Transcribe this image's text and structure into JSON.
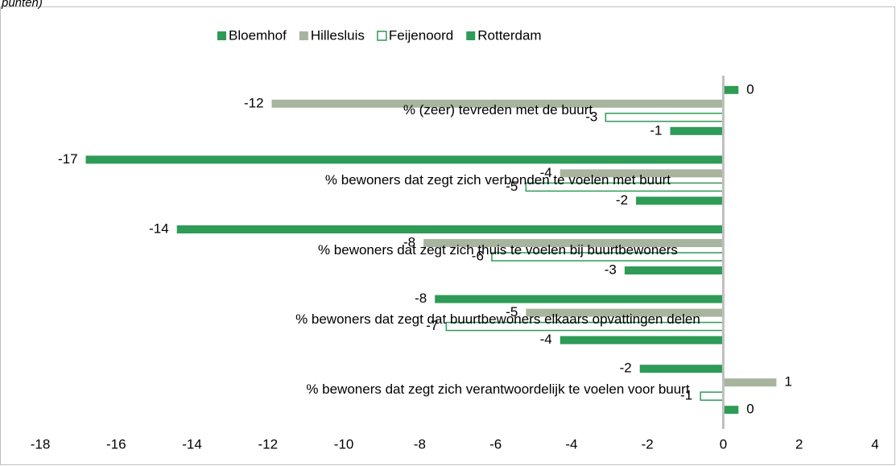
{
  "chart_data": {
    "type": "hbar",
    "title": "punten)",
    "categories": [
      "% (zeer) tevreden met de buurt",
      "% bewoners dat zegt zich verbonden te voelen met buurt",
      "% bewoners dat zegt zich thuis te voelen bij buurtbewoners",
      "% bewoners dat zegt dat buurtbewoners elkaars opvattingen delen",
      "% bewoners dat zegt zich verantwoordelijk te voelen voor buurt"
    ],
    "series": [
      {
        "name": "Bloemhof",
        "color": "#2e9b57",
        "filled": true,
        "values": [
          0.4,
          -16.8,
          -14.4,
          -7.6,
          -2.2
        ],
        "value_labels": [
          "0",
          "-17",
          "-14",
          "-8",
          "-2"
        ]
      },
      {
        "name": "Hillesluis",
        "color": "#a7b59f",
        "filled": true,
        "values": [
          -11.9,
          -4.3,
          -7.9,
          -5.2,
          1.4
        ],
        "value_labels": [
          "-12",
          "-4",
          "-8",
          "-5",
          "1"
        ]
      },
      {
        "name": "Feijenoord",
        "color": "#2e9b57",
        "filled": false,
        "values": [
          -3.1,
          -5.2,
          -6.1,
          -7.3,
          -0.6
        ],
        "value_labels": [
          "-3",
          "-5",
          "-6",
          "-7",
          "-1"
        ]
      },
      {
        "name": "Rotterdam",
        "color": "#2e9b57",
        "filled": true,
        "values": [
          -1.4,
          -2.3,
          -2.6,
          -4.3,
          0.4
        ],
        "value_labels": [
          "-1",
          "-2",
          "-3",
          "-4",
          "0"
        ]
      }
    ],
    "xlim": [
      -18,
      4
    ],
    "xticks": [
      -18,
      -16,
      -14,
      -12,
      -10,
      -8,
      -6,
      -4,
      -2,
      0,
      2,
      4
    ],
    "legend": "top"
  }
}
